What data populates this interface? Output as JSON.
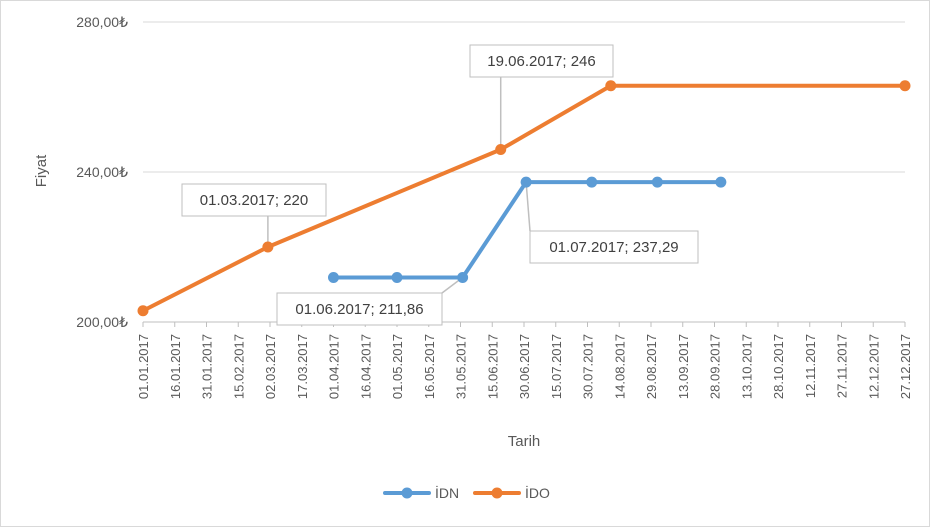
{
  "chart_data": {
    "type": "line",
    "xlabel": "Tarih",
    "ylabel": "Fiyat",
    "ylim": [
      200,
      280
    ],
    "yticks": [
      {
        "value": 200,
        "label": "200,00₺"
      },
      {
        "value": 240,
        "label": "240,00₺"
      },
      {
        "value": 280,
        "label": "280,00₺"
      }
    ],
    "xlim": [
      "2017-01-01",
      "2017-12-27"
    ],
    "x_tick_labels": [
      "01.01.2017",
      "16.01.2017",
      "31.01.2017",
      "15.02.2017",
      "02.03.2017",
      "17.03.2017",
      "01.04.2017",
      "16.04.2017",
      "01.05.2017",
      "16.05.2017",
      "31.05.2017",
      "15.06.2017",
      "30.06.2017",
      "15.07.2017",
      "30.07.2017",
      "14.08.2017",
      "29.08.2017",
      "13.09.2017",
      "28.09.2017",
      "13.10.2017",
      "28.10.2017",
      "12.11.2017",
      "27.11.2017",
      "12.12.2017",
      "27.12.2017"
    ],
    "grid": true,
    "legend_position": "bottom",
    "series": [
      {
        "name": "İDN",
        "color": "#5B9BD5",
        "points": [
          {
            "x": "2017-04-01",
            "y": 211.86
          },
          {
            "x": "2017-05-01",
            "y": 211.86
          },
          {
            "x": "2017-06-01",
            "y": 211.86
          },
          {
            "x": "2017-07-01",
            "y": 237.29
          },
          {
            "x": "2017-08-01",
            "y": 237.29
          },
          {
            "x": "2017-09-01",
            "y": 237.29
          },
          {
            "x": "2017-10-01",
            "y": 237.29
          }
        ]
      },
      {
        "name": "İDO",
        "color": "#ED7D31",
        "points": [
          {
            "x": "2017-01-01",
            "y": 203
          },
          {
            "x": "2017-03-01",
            "y": 220
          },
          {
            "x": "2017-06-19",
            "y": 246
          },
          {
            "x": "2017-08-10",
            "y": 263
          },
          {
            "x": "2017-12-27",
            "y": 263
          }
        ]
      }
    ],
    "annotations": [
      {
        "text": "01.03.2017; 220",
        "series": 1,
        "point": 1
      },
      {
        "text": "19.06.2017; 246",
        "series": 1,
        "point": 2
      },
      {
        "text": "01.06.2017; 211,86",
        "series": 0,
        "point": 2
      },
      {
        "text": "01.07.2017; 237,29",
        "series": 0,
        "point": 3
      }
    ]
  }
}
